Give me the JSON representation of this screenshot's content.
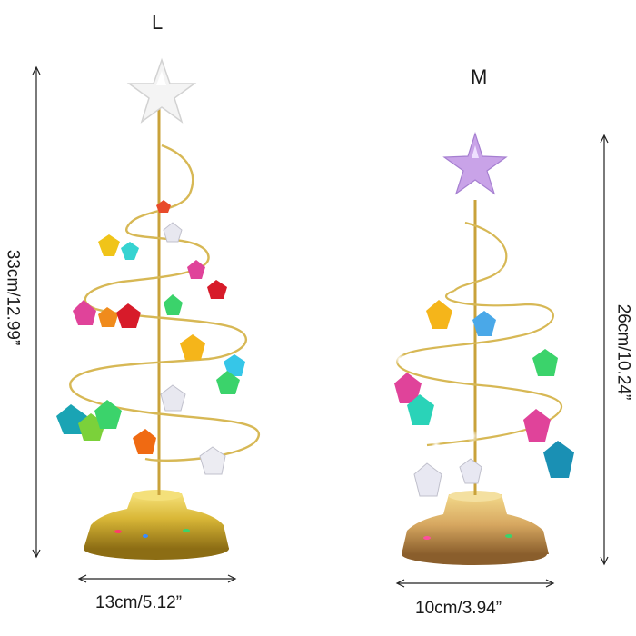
{
  "sizes": {
    "large": {
      "label": "L",
      "height_text": "33cm/12.99”",
      "width_text": "13cm/5.12”"
    },
    "medium": {
      "label": "M",
      "height_text": "26cm/10.24”",
      "width_text": "10cm/3.94”"
    }
  },
  "colors": {
    "gold": "#d4b14a",
    "gold_dark": "#9a7a20",
    "dimension_line": "#222222",
    "star_large": "#f3f3f3",
    "star_medium": "#c9a3e8"
  }
}
